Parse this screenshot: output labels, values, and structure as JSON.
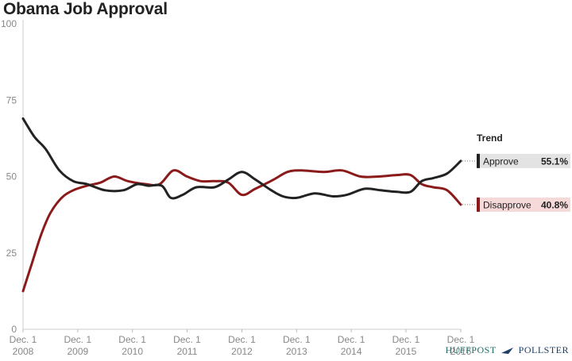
{
  "chart_data": {
    "type": "line",
    "title": "Obama Job Approval",
    "xlabel": "",
    "ylabel": "",
    "ylim": [
      0,
      100
    ],
    "yticks": [
      0,
      25,
      50,
      75,
      100
    ],
    "xlim": [
      "2008-12-01",
      "2016-12-01"
    ],
    "xticks": [
      {
        "date": "2008-12-01",
        "line1": "Dec. 1",
        "line2": "2008"
      },
      {
        "date": "2009-12-01",
        "line1": "Dec. 1",
        "line2": "2009"
      },
      {
        "date": "2010-12-01",
        "line1": "Dec. 1",
        "line2": "2010"
      },
      {
        "date": "2011-12-01",
        "line1": "Dec. 1",
        "line2": "2011"
      },
      {
        "date": "2012-12-01",
        "line1": "Dec. 1",
        "line2": "2012"
      },
      {
        "date": "2013-12-01",
        "line1": "Dec. 1",
        "line2": "2013"
      },
      {
        "date": "2014-12-01",
        "line1": "Dec. 1",
        "line2": "2014"
      },
      {
        "date": "2015-12-01",
        "line1": "Dec. 1",
        "line2": "2015"
      },
      {
        "date": "2016-12-01",
        "line1": "Dec. 1",
        "line2": "2016"
      }
    ],
    "grid": "none",
    "legend": {
      "title": "Trend",
      "placement": "right",
      "items": [
        {
          "name": "Approve",
          "value": "55.1%"
        },
        {
          "name": "Disapprove",
          "value": "40.8%"
        }
      ]
    },
    "series": [
      {
        "name": "Approve",
        "color": "#222222",
        "points": [
          [
            "2008-12-01",
            69
          ],
          [
            "2009-02-15",
            63
          ],
          [
            "2009-05-01",
            59
          ],
          [
            "2009-08-01",
            52
          ],
          [
            "2009-11-01",
            48.5
          ],
          [
            "2010-02-01",
            47.5
          ],
          [
            "2010-06-01",
            45.5
          ],
          [
            "2010-10-01",
            45.5
          ],
          [
            "2011-01-01",
            47.5
          ],
          [
            "2011-03-15",
            47
          ],
          [
            "2011-06-15",
            47
          ],
          [
            "2011-08-15",
            43
          ],
          [
            "2011-11-01",
            44
          ],
          [
            "2012-02-01",
            46.5
          ],
          [
            "2012-06-01",
            46.5
          ],
          [
            "2012-09-01",
            49
          ],
          [
            "2012-12-01",
            51.5
          ],
          [
            "2013-03-01",
            49
          ],
          [
            "2013-06-15",
            45.5
          ],
          [
            "2013-09-01",
            43.5
          ],
          [
            "2013-12-01",
            43
          ],
          [
            "2014-04-01",
            44.5
          ],
          [
            "2014-08-01",
            43.5
          ],
          [
            "2014-11-01",
            44
          ],
          [
            "2015-03-01",
            46
          ],
          [
            "2015-06-15",
            45.5
          ],
          [
            "2015-10-01",
            45
          ],
          [
            "2016-01-01",
            45
          ],
          [
            "2016-03-15",
            48.5
          ],
          [
            "2016-06-01",
            49.5
          ],
          [
            "2016-09-01",
            51
          ],
          [
            "2016-12-01",
            55.1
          ]
        ]
      },
      {
        "name": "Disapprove",
        "color": "#8b1a1a",
        "points": [
          [
            "2008-12-01",
            12.5
          ],
          [
            "2009-02-01",
            22
          ],
          [
            "2009-04-01",
            31
          ],
          [
            "2009-06-01",
            38
          ],
          [
            "2009-08-15",
            43
          ],
          [
            "2009-11-01",
            45.5
          ],
          [
            "2010-02-01",
            47
          ],
          [
            "2010-05-01",
            48
          ],
          [
            "2010-08-01",
            50
          ],
          [
            "2010-11-01",
            48.5
          ],
          [
            "2011-03-01",
            47.5
          ],
          [
            "2011-06-01",
            47.5
          ],
          [
            "2011-09-01",
            52
          ],
          [
            "2011-12-01",
            50
          ],
          [
            "2012-03-01",
            48.5
          ],
          [
            "2012-06-01",
            48.5
          ],
          [
            "2012-09-01",
            48
          ],
          [
            "2012-12-01",
            44
          ],
          [
            "2013-03-01",
            46
          ],
          [
            "2013-07-01",
            49
          ],
          [
            "2013-10-01",
            51.5
          ],
          [
            "2014-01-01",
            52
          ],
          [
            "2014-06-01",
            51.5
          ],
          [
            "2014-10-01",
            52
          ],
          [
            "2015-02-01",
            50
          ],
          [
            "2015-06-01",
            50
          ],
          [
            "2015-10-01",
            50.5
          ],
          [
            "2016-01-01",
            50.5
          ],
          [
            "2016-03-15",
            47.5
          ],
          [
            "2016-06-01",
            46.5
          ],
          [
            "2016-09-01",
            45.5
          ],
          [
            "2016-12-01",
            40.8
          ]
        ]
      }
    ]
  },
  "brand": {
    "huffpost": "HUFFPOST",
    "pollster": "POLLSTER"
  }
}
